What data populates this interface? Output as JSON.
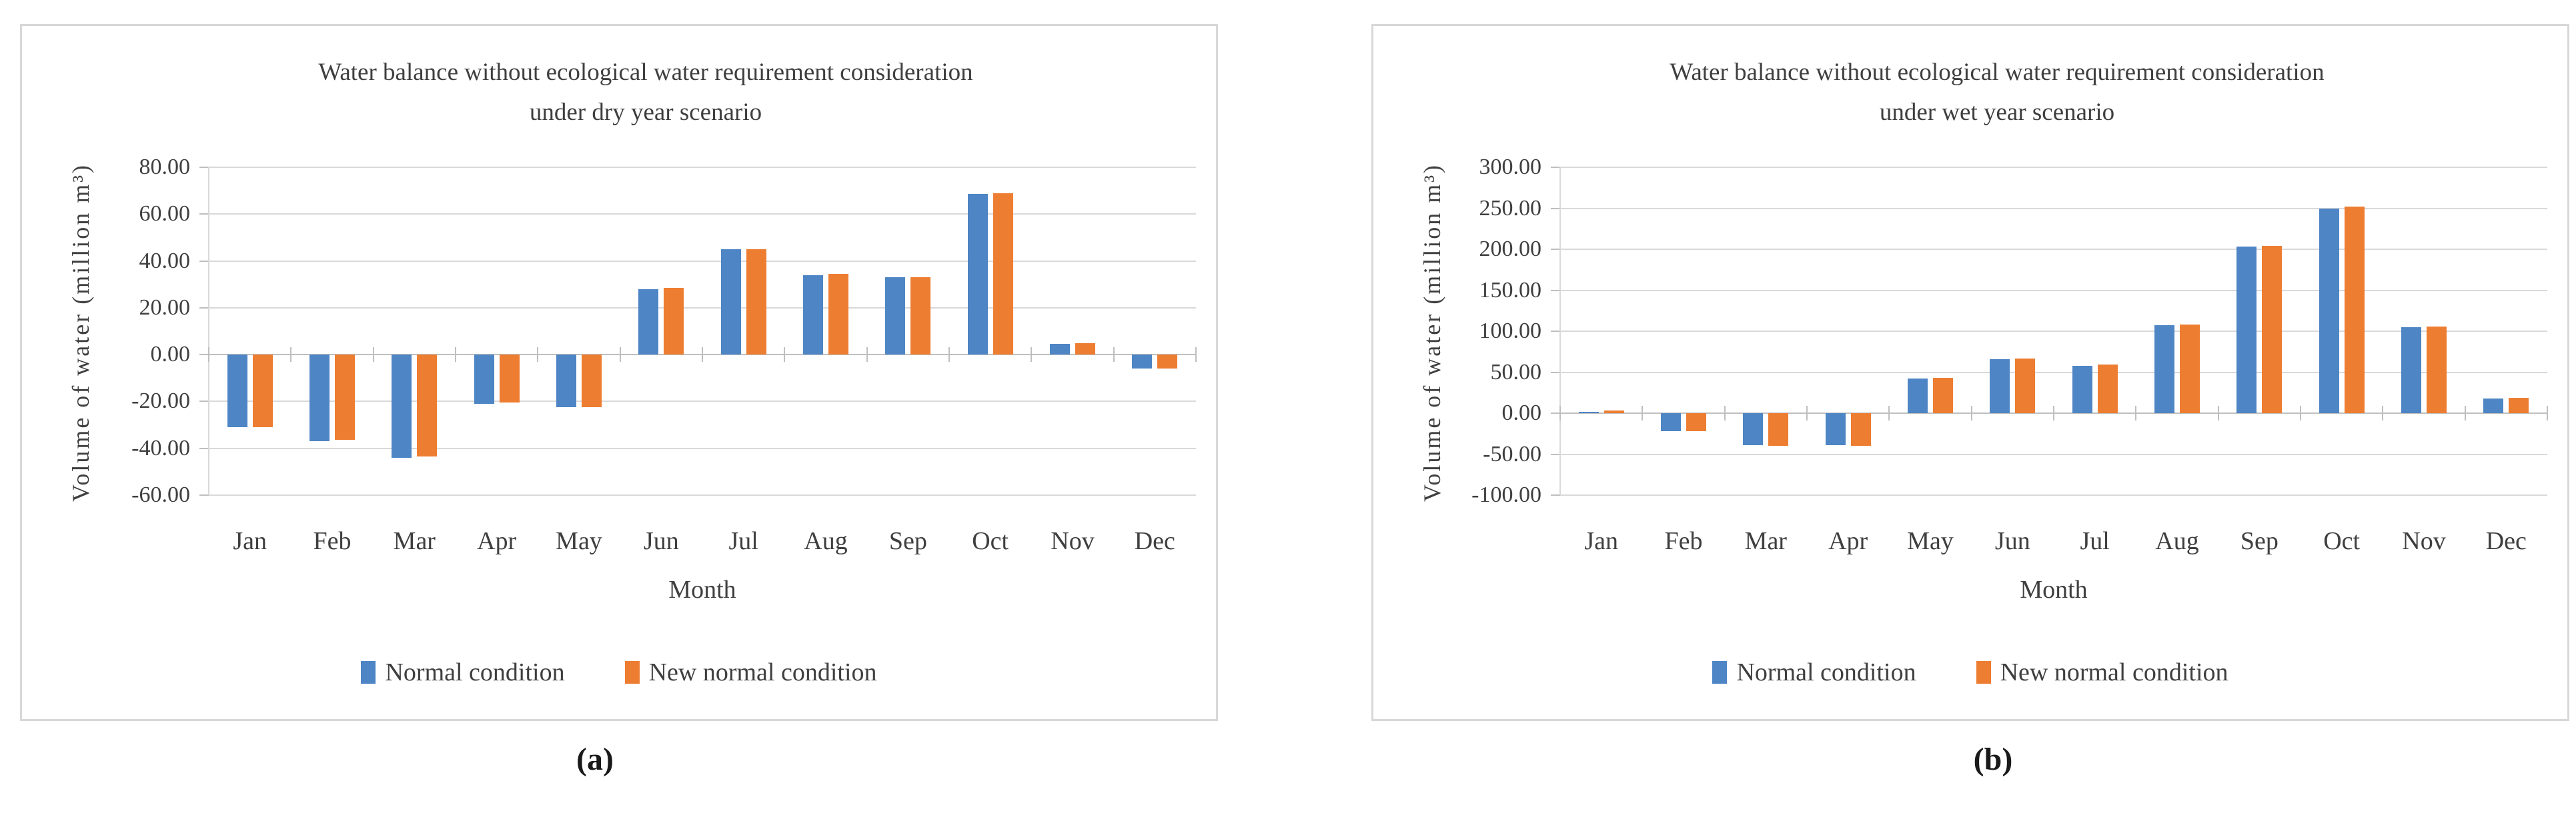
{
  "figure": {
    "caption_a": "(a)",
    "caption_b": "(b)"
  },
  "colors": {
    "normal": "#4e85c5",
    "new_normal": "#ed7d31",
    "gridline": "#d9d9d9",
    "axis": "#bfbfbf",
    "text": "#3f3f3f",
    "panel_border": "#d8d8d8"
  },
  "legend": {
    "normal_label": "Normal condition",
    "new_normal_label": "New normal condition"
  },
  "chart_data": [
    {
      "type": "bar",
      "panel": "a",
      "title_line1": "Water balance without ecological water requirement consideration",
      "title_line2": "under dry year scenario",
      "xlabel": "Month",
      "ylabel": "Volume of water (million m³)",
      "categories": [
        "Jan",
        "Feb",
        "Mar",
        "Apr",
        "May",
        "Jun",
        "Jul",
        "Aug",
        "Sep",
        "Oct",
        "Nov",
        "Dec"
      ],
      "series": [
        {
          "name": "Normal condition",
          "values": [
            -31,
            -37,
            -44,
            -21,
            -22.5,
            28,
            45,
            34,
            33,
            68.5,
            4.5,
            -6
          ]
        },
        {
          "name": "New normal condition",
          "values": [
            -31,
            -36.5,
            -43.5,
            -20.5,
            -22.5,
            28.5,
            45,
            34.5,
            33,
            69,
            5,
            -6
          ]
        }
      ],
      "ylim": [
        -60,
        80
      ],
      "ytick_step": 20,
      "ytick_labels": [
        "80.00",
        "60.00",
        "40.00",
        "20.00",
        "0.00",
        "-20.00",
        "-40.00",
        "-60.00"
      ],
      "grid": true,
      "legend_position": "bottom"
    },
    {
      "type": "bar",
      "panel": "b",
      "title_line1": "Water balance without ecological water requirement consideration",
      "title_line2": "under wet year scenario",
      "xlabel": "Month",
      "ylabel": "Volume of water (million m³)",
      "categories": [
        "Jan",
        "Feb",
        "Mar",
        "Apr",
        "May",
        "Jun",
        "Jul",
        "Aug",
        "Sep",
        "Oct",
        "Nov",
        "Dec"
      ],
      "series": [
        {
          "name": "Normal condition",
          "values": [
            2,
            -22,
            -39,
            -39,
            42,
            66,
            58,
            107,
            203,
            250,
            105,
            18
          ]
        },
        {
          "name": "New normal condition",
          "values": [
            3,
            -22,
            -40,
            -40,
            43,
            67,
            59,
            108,
            204,
            252,
            106,
            19
          ]
        }
      ],
      "ylim": [
        -100,
        300
      ],
      "ytick_step": 50,
      "ytick_labels": [
        "300.00",
        "250.00",
        "200.00",
        "150.00",
        "100.00",
        "50.00",
        "0.00",
        "-50.00",
        "-100.00"
      ],
      "grid": true,
      "legend_position": "bottom"
    }
  ]
}
